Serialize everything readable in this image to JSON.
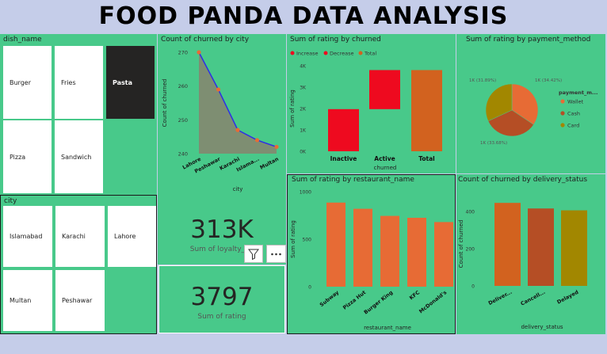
{
  "title": "FOOD PANDA DATA ANALYSIS",
  "dish_slicer": {
    "title": "dish_name",
    "items": [
      "Burger",
      "Fries",
      "Pasta",
      "Pizza",
      "Sandwich"
    ],
    "selected": "Pasta"
  },
  "city_slicer": {
    "title": "city",
    "items": [
      "Islamabad",
      "Karachi",
      "Lahore",
      "Multan",
      "Peshawar"
    ]
  },
  "cards": {
    "loyalty": {
      "value": "313K",
      "label": "Sum of loyalty_po"
    },
    "rating": {
      "value": "3797",
      "label": "Sum of rating"
    }
  },
  "colors": {
    "panel": "#48c98a",
    "orange": "#e76b35",
    "red": "#ee0a1f",
    "dark_orange": "#d2621f",
    "brown": "#b54e25",
    "olive": "#a28700",
    "line": "#2d2ee6"
  },
  "icons": {
    "filter": "filter-icon",
    "more": "more-options-icon"
  },
  "chart_data": [
    {
      "type": "area",
      "title": "Count of churned by city",
      "xlabel": "city",
      "ylabel": "Count of churned",
      "categories": [
        "Lahore",
        "Peshawar",
        "Karachi",
        "Islama...",
        "Multan"
      ],
      "values": [
        270,
        259,
        247,
        244,
        242
      ],
      "ylim": [
        240,
        270
      ],
      "yticks": [
        "240",
        "250",
        "260",
        "270"
      ]
    },
    {
      "type": "bar",
      "title": "Sum of rating by churned",
      "xlabel": "churned",
      "ylabel": "Sum of rating",
      "legend": [
        "Increase",
        "Decrease",
        "Total"
      ],
      "categories": [
        "Inactive",
        "Active",
        "Total"
      ],
      "values": [
        1970,
        1827,
        3797
      ],
      "ylim": [
        0,
        4000
      ],
      "yticks": [
        "0K",
        "1K",
        "2K",
        "3K",
        "4K"
      ]
    },
    {
      "type": "pie",
      "title": "Sum of rating by payment_method",
      "legend_title": "payment_m...",
      "labels": [
        "Wallet",
        "Cash",
        "Card"
      ],
      "values": [
        34.42,
        33.68,
        31.89
      ],
      "slice_labels": [
        "1K (34.42%)",
        "1K (33.68%)",
        "1K (31.89%)"
      ]
    },
    {
      "type": "bar",
      "title": "Sum of rating by restaurant_name",
      "xlabel": "restaurant_name",
      "ylabel": "Sum of rating",
      "categories": [
        "Subway",
        "Pizza Hut",
        "Burger King",
        "KFC",
        "McDonald's"
      ],
      "values": [
        885,
        820,
        745,
        725,
        680
      ],
      "ylim": [
        0,
        1000
      ],
      "yticks": [
        "0",
        "500",
        "1000"
      ]
    },
    {
      "type": "bar",
      "title": "Count of churned by delivery_status",
      "xlabel": "delivery_status",
      "ylabel": "Count of churned",
      "categories": [
        "Deliver...",
        "Cancell...",
        "Delayed"
      ],
      "values": [
        445,
        415,
        405
      ],
      "ylim": [
        0,
        450
      ],
      "yticks": [
        "0",
        "200",
        "400"
      ]
    }
  ]
}
